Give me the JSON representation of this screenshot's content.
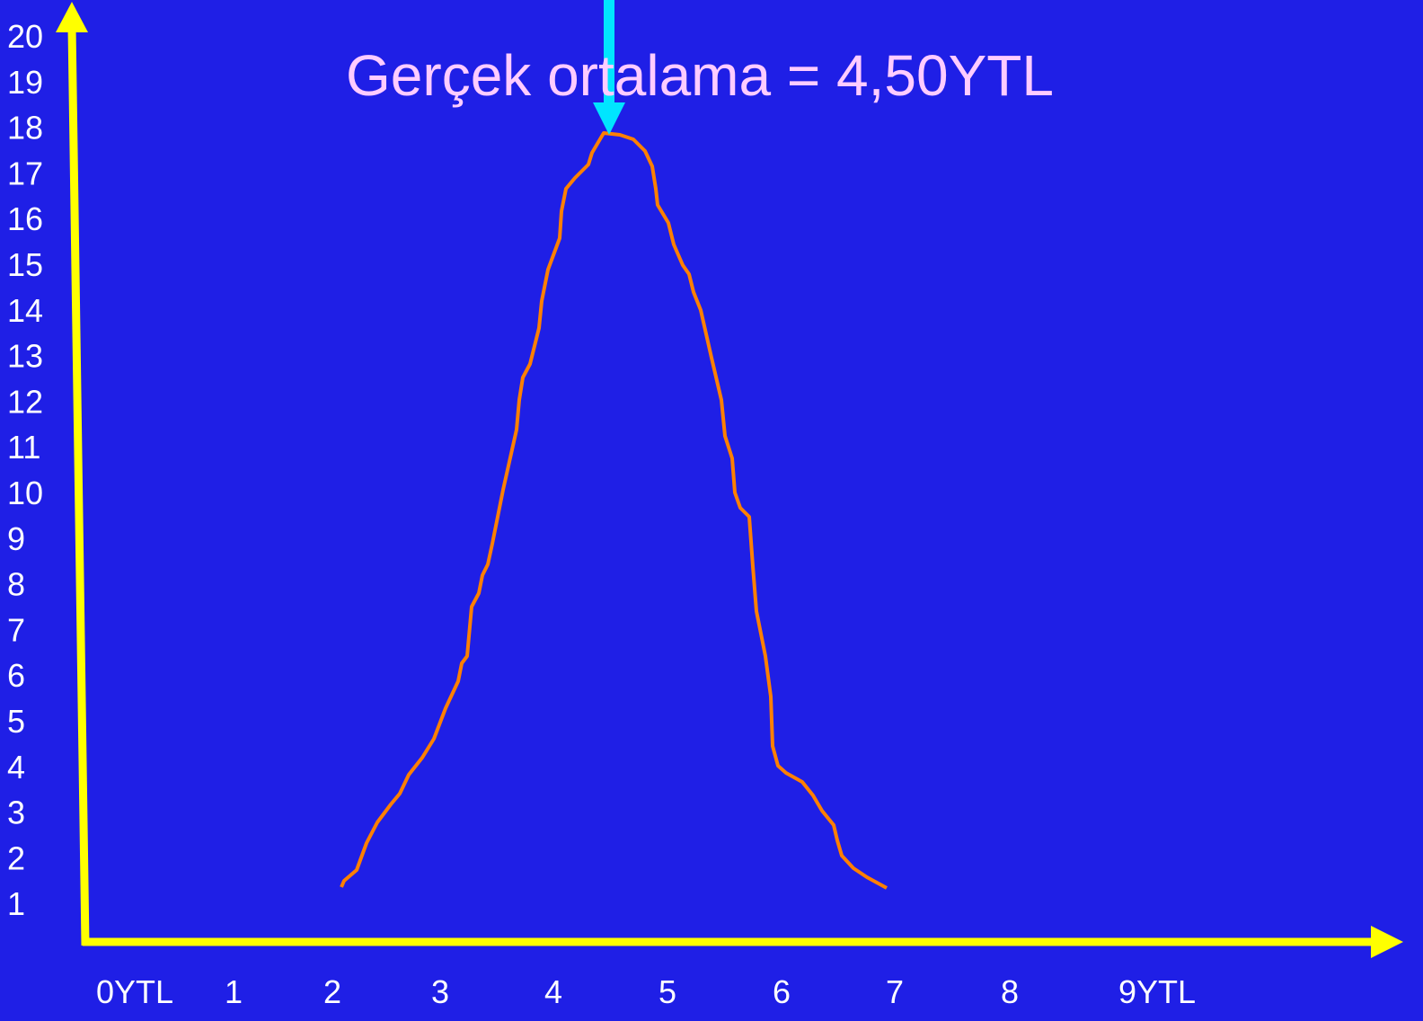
{
  "annotation": "Gerçek ortalama = 4,50YTL",
  "y_labels": [
    "20",
    "19",
    "18",
    "17",
    "16",
    "15",
    "14",
    "13",
    "12",
    "11",
    "10",
    "9",
    "8",
    "7",
    "6",
    "5",
    "4",
    "3",
    "2",
    "1"
  ],
  "x_labels": [
    "0YTL",
    "1",
    "2",
    "3",
    "4",
    "5",
    "6",
    "7",
    "8",
    "9YTL"
  ]
}
